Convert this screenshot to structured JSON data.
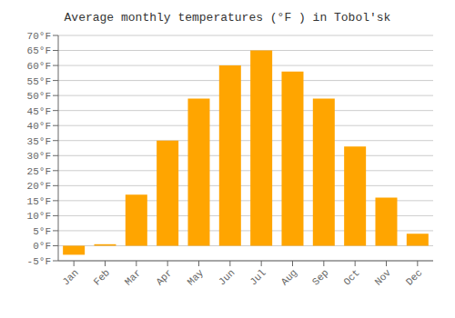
{
  "chart_data": {
    "type": "bar",
    "title": "Average monthly temperatures (°F ) in Tobolʹsk",
    "categories": [
      "Jan",
      "Feb",
      "Mar",
      "Apr",
      "May",
      "Jun",
      "Jul",
      "Aug",
      "Sep",
      "Oct",
      "Nov",
      "Dec"
    ],
    "values": [
      -3,
      0.5,
      17,
      35,
      49,
      60,
      65,
      58,
      49,
      33,
      16,
      4
    ],
    "color": "#FFA500",
    "ylim": [
      -5,
      70
    ],
    "yticks": [
      {
        "value": -5,
        "label": "-5°F"
      },
      {
        "value": 0,
        "label": "0°F"
      },
      {
        "value": 5,
        "label": "5°F"
      },
      {
        "value": 10,
        "label": "10°F"
      },
      {
        "value": 15,
        "label": "15°F"
      },
      {
        "value": 20,
        "label": "20°F"
      },
      {
        "value": 25,
        "label": "25°F"
      },
      {
        "value": 30,
        "label": "30°F"
      },
      {
        "value": 35,
        "label": "35°F"
      },
      {
        "value": 40,
        "label": "40°F"
      },
      {
        "value": 45,
        "label": "45°F"
      },
      {
        "value": 50,
        "label": "50°F"
      },
      {
        "value": 55,
        "label": "55°F"
      },
      {
        "value": 60,
        "label": "60°F"
      },
      {
        "value": 65,
        "label": "65°F"
      },
      {
        "value": 70,
        "label": "70°F"
      }
    ],
    "grid": true
  }
}
